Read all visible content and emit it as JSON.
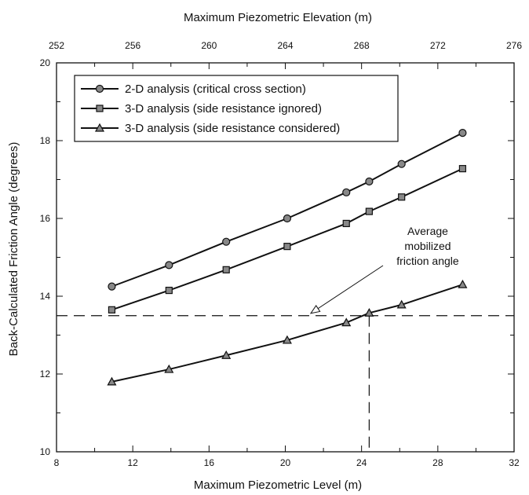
{
  "chart_data": {
    "type": "line",
    "xlabel": "Maximum Piezometric Level (m)",
    "ylabel": "Back-Calculated Friction Angle (degrees)",
    "x2label": "Maximum Piezometric Elevation (m)",
    "xlim": [
      8,
      32
    ],
    "ylim": [
      10,
      20
    ],
    "x2lim": [
      252,
      276
    ],
    "xticks": [
      "8",
      "12",
      "16",
      "20",
      "24",
      "28",
      "32"
    ],
    "yticks": [
      "10",
      "12",
      "14",
      "16",
      "18",
      "20"
    ],
    "x2ticks": [
      "252",
      "256",
      "260",
      "264",
      "268",
      "272",
      "276"
    ],
    "grid": false,
    "legend_position": "top-left",
    "series": [
      {
        "name": "2-D analysis (critical cross section)",
        "marker": "circle",
        "x": [
          10.9,
          13.9,
          16.9,
          20.1,
          23.2,
          24.4,
          26.1,
          29.3
        ],
        "y": [
          14.25,
          14.8,
          15.4,
          16.0,
          16.67,
          16.95,
          17.4,
          18.2
        ]
      },
      {
        "name": "3-D analysis (side resistance ignored)",
        "marker": "square",
        "x": [
          10.9,
          13.9,
          16.9,
          20.1,
          23.2,
          24.4,
          26.1,
          29.3
        ],
        "y": [
          13.65,
          14.15,
          14.68,
          15.28,
          15.87,
          16.18,
          16.55,
          17.28
        ]
      },
      {
        "name": "3-D analysis (side resistance considered)",
        "marker": "triangle",
        "x": [
          10.9,
          13.9,
          16.9,
          20.1,
          23.2,
          24.4,
          26.1,
          29.3
        ],
        "y": [
          11.8,
          12.12,
          12.48,
          12.87,
          13.32,
          13.57,
          13.78,
          14.3
        ]
      }
    ],
    "reference_lines": {
      "horizontal_y": 13.5,
      "vertical_x": 24.4
    },
    "annotation": {
      "lines": [
        "Average",
        "mobilized",
        "friction angle"
      ]
    }
  }
}
